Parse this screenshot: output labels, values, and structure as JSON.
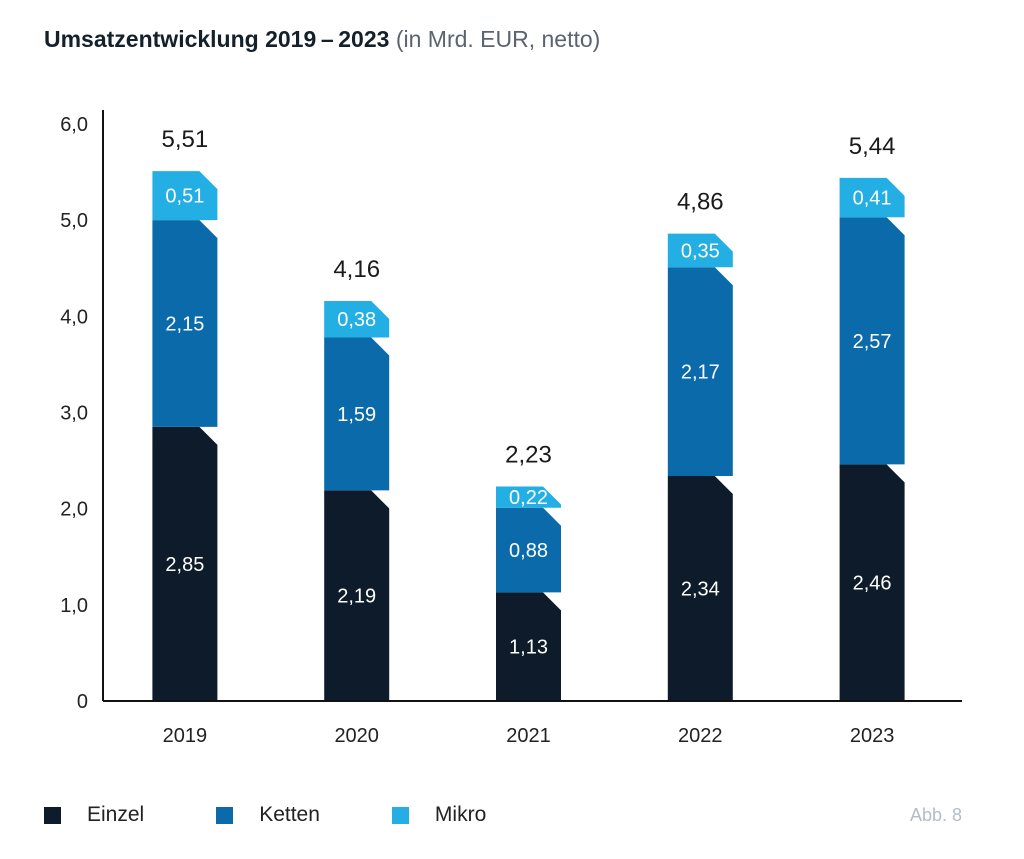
{
  "title": {
    "bold": "Umsatzentwicklung 2019 – 2023",
    "light": "(in Mrd. EUR, netto)"
  },
  "figure_ref": "Abb. 8",
  "colors": {
    "Einzel": "#0d1b2a",
    "Ketten": "#0b6aaa",
    "Mikro": "#23aee4",
    "axis": "#111111"
  },
  "chart_data": {
    "type": "bar",
    "stacked": true,
    "categories": [
      "2019",
      "2020",
      "2021",
      "2022",
      "2023"
    ],
    "series": [
      {
        "name": "Einzel",
        "values": [
          2.85,
          2.19,
          1.13,
          2.34,
          2.46
        ],
        "labels": [
          "2,85",
          "2,19",
          "1,13",
          "2,34",
          "2,46"
        ]
      },
      {
        "name": "Ketten",
        "values": [
          2.15,
          1.59,
          0.88,
          2.17,
          2.57
        ],
        "labels": [
          "2,15",
          "1,59",
          "0,88",
          "2,17",
          "2,57"
        ]
      },
      {
        "name": "Mikro",
        "values": [
          0.51,
          0.38,
          0.22,
          0.35,
          0.41
        ],
        "labels": [
          "0,51",
          "0,38",
          "0,22",
          "0,35",
          "0,41"
        ]
      }
    ],
    "totals": [
      5.51,
      4.16,
      2.23,
      4.86,
      5.44
    ],
    "total_labels": [
      "5,51",
      "4,16",
      "2,23",
      "4,86",
      "5,44"
    ],
    "ylim": [
      0,
      6
    ],
    "yticks": [
      0,
      1,
      2,
      3,
      4,
      5,
      6
    ],
    "ytick_labels": [
      "0",
      "1,0",
      "2,0",
      "3,0",
      "4,0",
      "5,0",
      "6,0"
    ],
    "legend": [
      "Einzel",
      "Ketten",
      "Mikro"
    ],
    "legend_position": "bottom-left",
    "grid": false
  }
}
